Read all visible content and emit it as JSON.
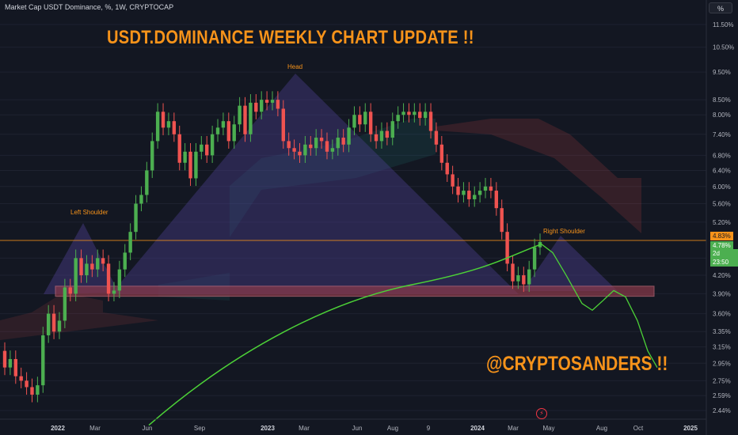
{
  "header": {
    "symbol_line": "Market Cap USDT Dominance, %, 1W, CRYPTOCAP",
    "unit_button": "%"
  },
  "annotations": {
    "headline": "USDT.DOMINANCE WEEKLY CHART UPDATE !!",
    "handle": "@CRYPTOSANDERS !!",
    "head": "Head",
    "left_shoulder": "Left Shoulder",
    "right_shoulder": "Right Shoulder"
  },
  "price_tags": {
    "orange_line": "4.83%",
    "current_price": "4.78%",
    "countdown": "2d 23:50"
  },
  "colors": {
    "background": "#131722",
    "up_candle": "#26a69a",
    "up_candle_bright": "#4caf50",
    "down_candle": "#ef5350",
    "moving_average": "#4cd137",
    "text_accent": "#f7931a",
    "pattern_fill": "#4b3f8c",
    "support_zone": "#8b3a4a",
    "tag_orange": "#f7931a",
    "tag_green": "#4caf50"
  },
  "icons": {
    "flash": "lightning-icon"
  },
  "chart_data": {
    "type": "candlestick",
    "scale": "log",
    "y_ticks": [
      "11.50%",
      "10.50%",
      "9.50%",
      "8.50%",
      "8.00%",
      "7.40%",
      "6.80%",
      "6.40%",
      "6.00%",
      "5.60%",
      "5.20%",
      "4.50%",
      "4.20%",
      "3.90%",
      "3.60%",
      "3.35%",
      "3.15%",
      "2.95%",
      "2.75%",
      "2.59%",
      "2.44%"
    ],
    "x_ticks": [
      {
        "label": "2022",
        "bold": true
      },
      {
        "label": "Mar",
        "bold": false
      },
      {
        "label": "Jun",
        "bold": false
      },
      {
        "label": "Sep",
        "bold": false
      },
      {
        "label": "2023",
        "bold": true
      },
      {
        "label": "Mar",
        "bold": false
      },
      {
        "label": "Jun",
        "bold": false
      },
      {
        "label": "Aug",
        "bold": false
      },
      {
        "label": "9",
        "bold": false
      },
      {
        "label": "2024",
        "bold": true
      },
      {
        "label": "Mar",
        "bold": false
      },
      {
        "label": "May",
        "bold": false
      },
      {
        "label": "Aug",
        "bold": false
      },
      {
        "label": "Oct",
        "bold": false
      },
      {
        "label": "2025",
        "bold": true
      }
    ],
    "close_series": [
      2.9,
      3.0,
      2.8,
      2.75,
      2.68,
      2.6,
      2.7,
      3.3,
      3.6,
      3.35,
      3.5,
      4.0,
      3.9,
      4.5,
      4.2,
      4.4,
      4.3,
      4.5,
      4.4,
      3.9,
      3.95,
      4.3,
      4.6,
      5.0,
      5.6,
      5.8,
      6.4,
      7.2,
      8.1,
      7.6,
      7.8,
      7.4,
      6.6,
      6.9,
      6.2,
      6.9,
      7.1,
      6.8,
      7.4,
      7.6,
      7.8,
      7.2,
      7.7,
      8.3,
      7.4,
      8.4,
      8.1,
      8.5,
      8.4,
      8.5,
      8.2,
      7.2,
      7.0,
      6.9,
      6.8,
      7.1,
      7.0,
      7.3,
      7.2,
      6.9,
      7.0,
      7.3,
      7.1,
      7.6,
      8.0,
      7.7,
      8.1,
      7.4,
      7.2,
      7.5,
      7.3,
      7.8,
      8.0,
      8.1,
      8.0,
      8.1,
      7.9,
      8.1,
      7.5,
      7.1,
      6.6,
      6.3,
      6.0,
      5.8,
      5.9,
      5.7,
      5.8,
      5.9,
      6.0,
      5.9,
      5.5,
      5.0,
      4.4,
      4.1,
      4.2,
      4.05,
      4.3,
      4.7,
      4.8
    ],
    "moving_average_start": 2.3,
    "moving_average_end": 4.75,
    "forecast_path": [
      4.78,
      4.6,
      4.2,
      3.75,
      3.65,
      3.8,
      3.95,
      3.85,
      3.5,
      3.1,
      2.9
    ],
    "support_zone": [
      3.86,
      4.02
    ],
    "horizontal_line": 4.83
  }
}
